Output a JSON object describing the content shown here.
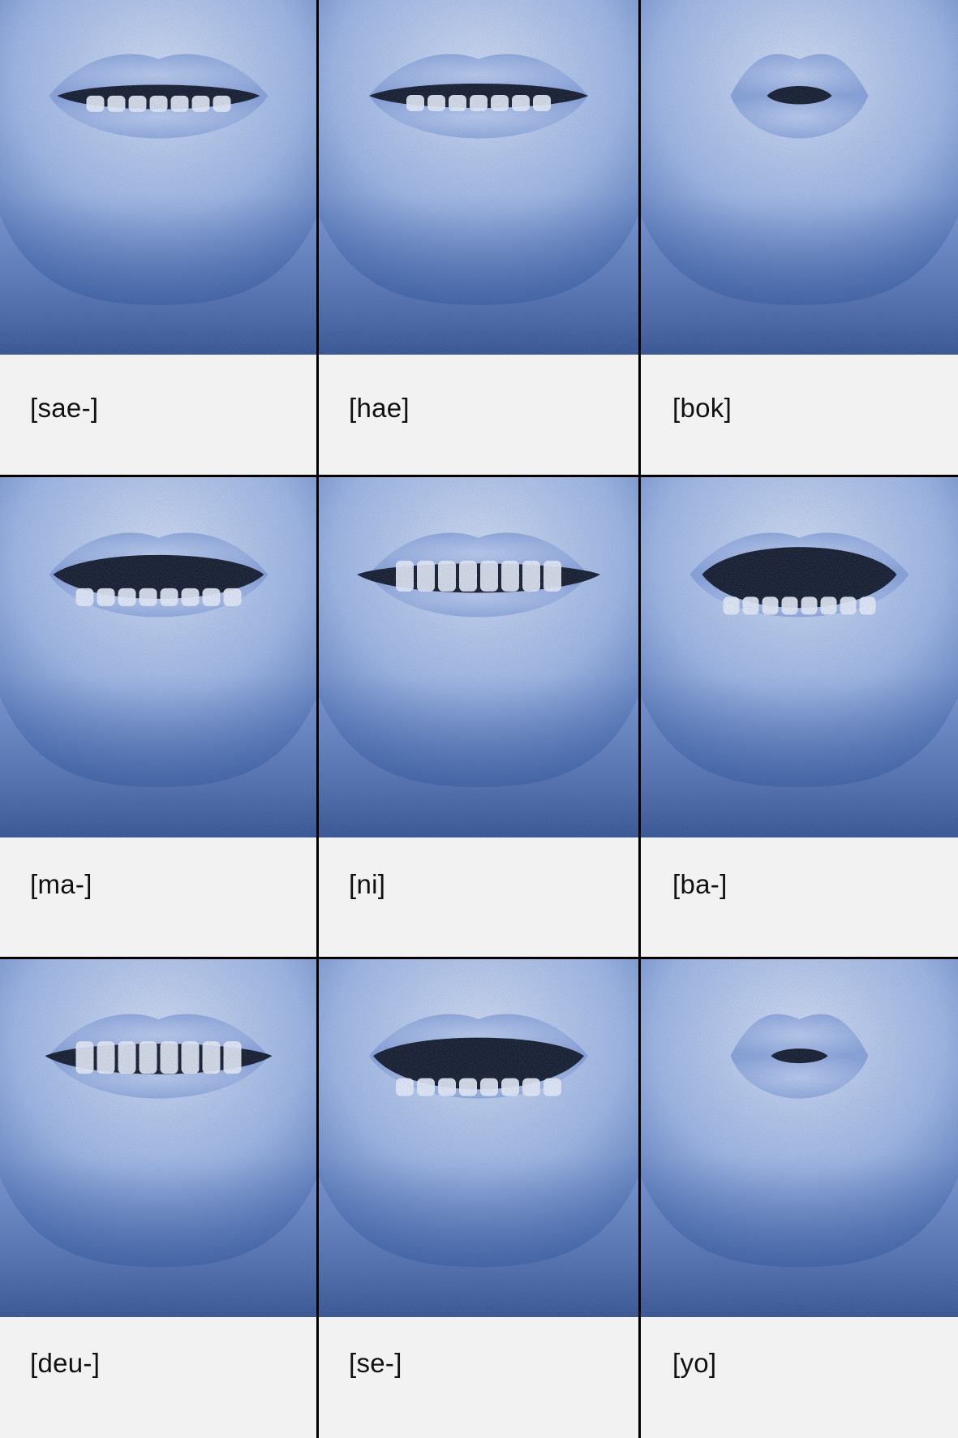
{
  "panels": [
    {
      "label": "[sae-]",
      "mouth": "wide-teeth"
    },
    {
      "label": "[hae]",
      "mouth": "wide-teeth-smile"
    },
    {
      "label": "[bok]",
      "mouth": "round-small"
    },
    {
      "label": "[ma-]",
      "mouth": "open-wide"
    },
    {
      "label": "[ni]",
      "mouth": "teeth-bared"
    },
    {
      "label": "[ba-]",
      "mouth": "open-large"
    },
    {
      "label": "[deu-]",
      "mouth": "teeth-clenched"
    },
    {
      "label": "[se-]",
      "mouth": "open-teeth"
    },
    {
      "label": "[yo]",
      "mouth": "round-pout"
    }
  ],
  "colors": {
    "skin_light": "#e6ecf7",
    "skin_mid": "#a9bee6",
    "skin_dark": "#3f62a8",
    "mouth_dark": "#05060c",
    "teeth": "#ffffff",
    "label_bg": "#f2f2f2",
    "divider": "#000000"
  }
}
